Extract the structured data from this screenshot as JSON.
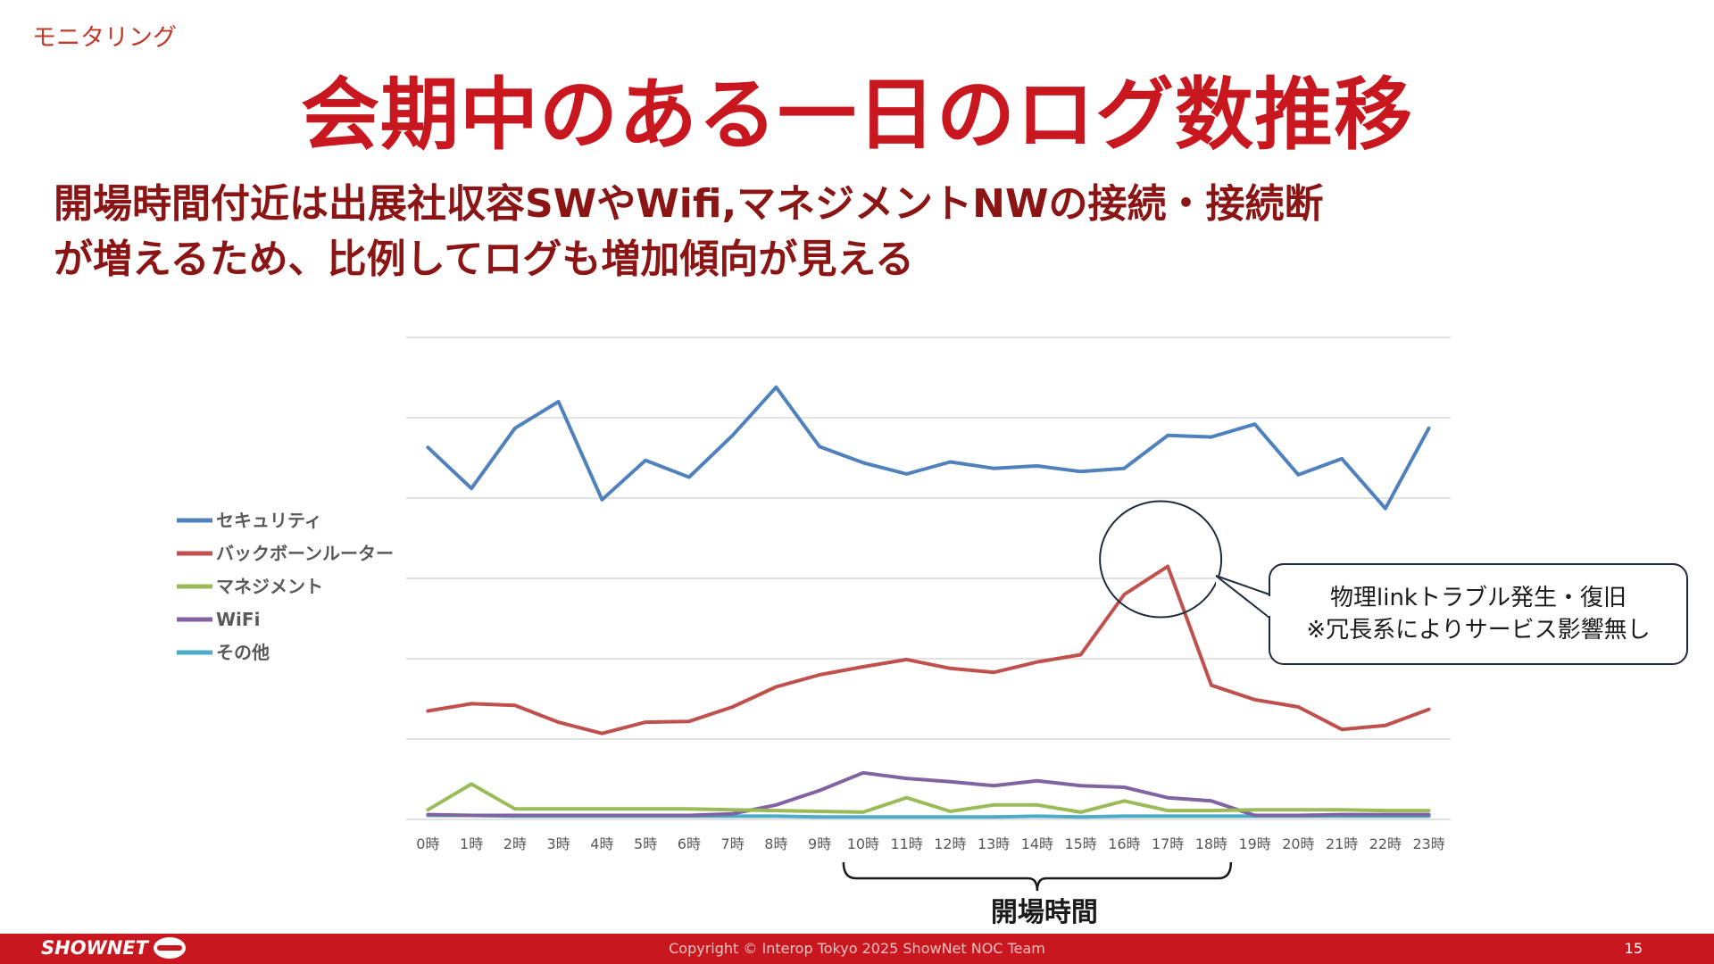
{
  "header": {
    "section_label": "モニタリング",
    "title": "会期中のある一日のログ数推移",
    "subtitle_line1": "開場時間付近は出展社収容SWやWifi,マネジメントNWの接続・接続断",
    "subtitle_line2": "が増えるため、比例してログも増加傾向が見える"
  },
  "footer": {
    "logo_text": "SHOWNET",
    "copyright": "Copyright © Interop Tokyo 2025 ShowNet NOC Team",
    "page_number": "15"
  },
  "chart_data": {
    "type": "line",
    "categories": [
      "0時",
      "1時",
      "2時",
      "3時",
      "4時",
      "5時",
      "6時",
      "7時",
      "8時",
      "9時",
      "10時",
      "11時",
      "12時",
      "13時",
      "14時",
      "15時",
      "16時",
      "17時",
      "18時",
      "19時",
      "20時",
      "21時",
      "22時",
      "23時"
    ],
    "ylim": [
      0,
      6
    ],
    "grid": true,
    "yticklabels_visible": false,
    "legend_position": "left",
    "series": [
      {
        "name": "セキュリティ",
        "color": "#4f81bd",
        "values": [
          4.63,
          4.12,
          4.87,
          5.2,
          3.98,
          4.47,
          4.26,
          4.78,
          5.38,
          4.64,
          4.44,
          4.3,
          4.45,
          4.37,
          4.4,
          4.33,
          4.37,
          4.78,
          4.76,
          4.92,
          4.29,
          4.49,
          3.87,
          4.87
        ]
      },
      {
        "name": "バックボーンルーター",
        "color": "#c0504d",
        "values": [
          1.35,
          1.44,
          1.42,
          1.21,
          1.07,
          1.21,
          1.22,
          1.4,
          1.65,
          1.8,
          1.9,
          1.99,
          1.88,
          1.83,
          1.96,
          2.05,
          2.8,
          3.15,
          1.67,
          1.49,
          1.4,
          1.12,
          1.17,
          1.37
        ]
      },
      {
        "name": "マネジメント",
        "color": "#9bbb59",
        "values": [
          0.12,
          0.44,
          0.13,
          0.13,
          0.13,
          0.13,
          0.13,
          0.12,
          0.11,
          0.1,
          0.09,
          0.27,
          0.1,
          0.18,
          0.18,
          0.09,
          0.23,
          0.11,
          0.11,
          0.12,
          0.12,
          0.12,
          0.11,
          0.11
        ]
      },
      {
        "name": "WiFi",
        "color": "#8064a2",
        "values": [
          0.06,
          0.05,
          0.05,
          0.05,
          0.05,
          0.05,
          0.05,
          0.07,
          0.18,
          0.36,
          0.58,
          0.51,
          0.47,
          0.42,
          0.48,
          0.42,
          0.4,
          0.27,
          0.23,
          0.05,
          0.05,
          0.06,
          0.06,
          0.06
        ]
      },
      {
        "name": "その他",
        "color": "#4bacc6",
        "values": [
          0.05,
          0.05,
          0.04,
          0.04,
          0.04,
          0.04,
          0.04,
          0.04,
          0.04,
          0.03,
          0.03,
          0.03,
          0.03,
          0.03,
          0.04,
          0.03,
          0.04,
          0.04,
          0.04,
          0.04,
          0.04,
          0.04,
          0.04,
          0.04
        ]
      }
    ],
    "annotations": {
      "callout_line1": "物理linkトラブル発生・復旧",
      "callout_line2": "※冗長系によりサービス影響無し",
      "callout_target_hour": "17時",
      "bracket_label": "開場時間",
      "bracket_from": "10時",
      "bracket_to": "18時"
    }
  }
}
